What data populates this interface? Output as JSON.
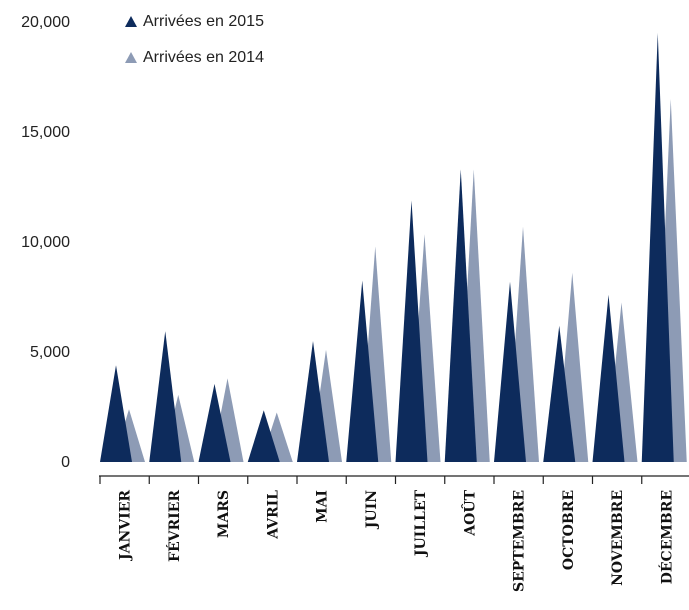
{
  "chart_data": {
    "type": "area",
    "categories": [
      "JANVIER",
      "FÉVRIER",
      "MARS",
      "AVRIL",
      "MAI",
      "JUIN",
      "JUILLET",
      "AOÛT",
      "SEPTEMBRE",
      "OCTOBRE",
      "NOVEMBRE",
      "DÉCEMBRE"
    ],
    "series": [
      {
        "name": "Arrivées en 2015",
        "color": "#0d2b5c",
        "values": [
          4400,
          5950,
          3550,
          2350,
          5500,
          8250,
          11900,
          13300,
          8200,
          6200,
          7600,
          19500
        ]
      },
      {
        "name": "Arrivées en 2014",
        "color": "#8d9bb5",
        "values": [
          2400,
          3050,
          3800,
          2250,
          5100,
          9800,
          10350,
          13300,
          10700,
          8600,
          7250,
          16500
        ]
      }
    ],
    "y_ticks": [
      "0",
      "5,000",
      "10,000",
      "15,000",
      "20,000"
    ],
    "ylim": [
      0,
      20000
    ],
    "legend_position": "top-left",
    "grid": false
  }
}
